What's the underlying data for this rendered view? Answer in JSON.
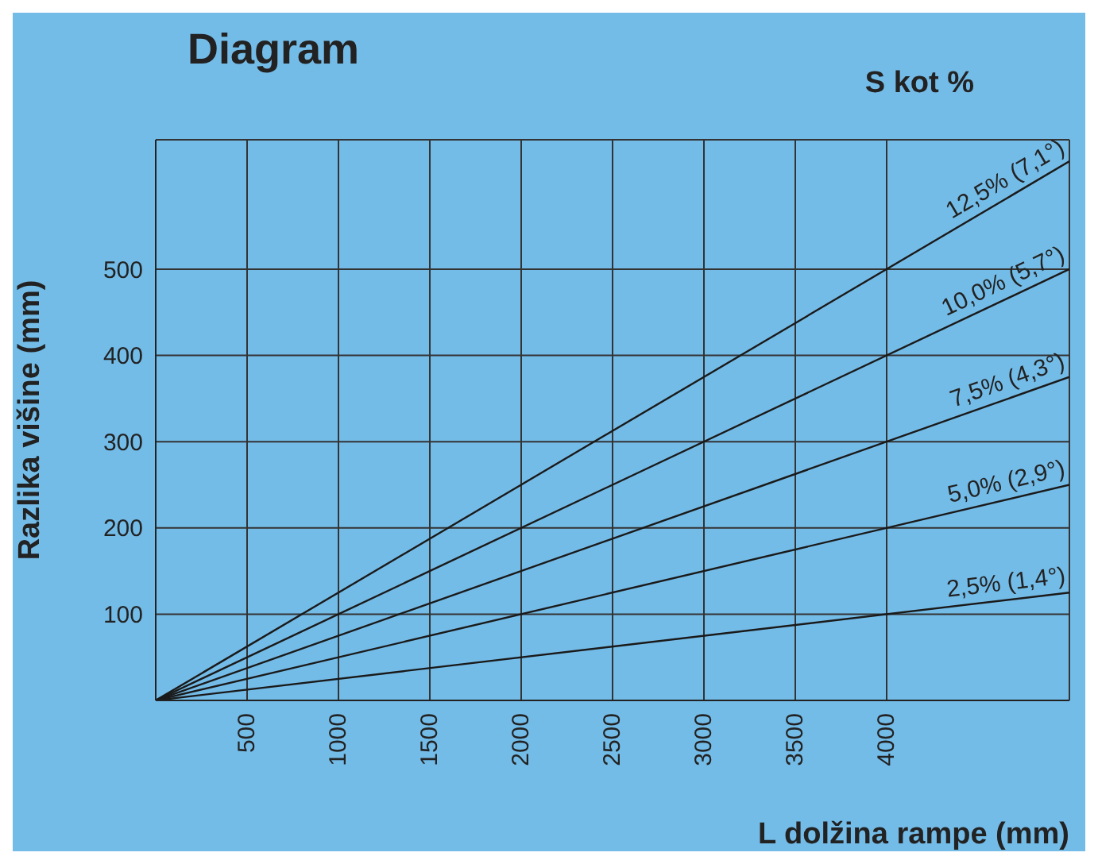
{
  "chart_data": {
    "type": "line",
    "title": "Diagram",
    "legend_title": "S kot %",
    "xlabel": "L dolžina rampe (mm)",
    "ylabel": "Razlika višine (mm)",
    "x": [
      0,
      5000
    ],
    "series": [
      {
        "name": "12,5% (7,1°)",
        "color": "#1a1a1a",
        "values": [
          0,
          625
        ]
      },
      {
        "name": "10,0% (5,7°)",
        "color": "#1a1a1a",
        "values": [
          0,
          500
        ]
      },
      {
        "name": "7,5% (4,3°)",
        "color": "#1a1a1a",
        "values": [
          0,
          375
        ]
      },
      {
        "name": "5,0% (2,9°)",
        "color": "#1a1a1a",
        "values": [
          0,
          250
        ]
      },
      {
        "name": "2,5% (1,4°)",
        "color": "#1a1a1a",
        "values": [
          0,
          125
        ]
      }
    ],
    "xlim": [
      0,
      5000
    ],
    "xticks": [
      500,
      1000,
      1500,
      2000,
      2500,
      3000,
      3500,
      4000
    ],
    "ylim": [
      0,
      650
    ],
    "yticks": [
      100,
      200,
      300,
      400,
      500
    ],
    "grid": true,
    "marker": "none",
    "line_style": "solid"
  }
}
